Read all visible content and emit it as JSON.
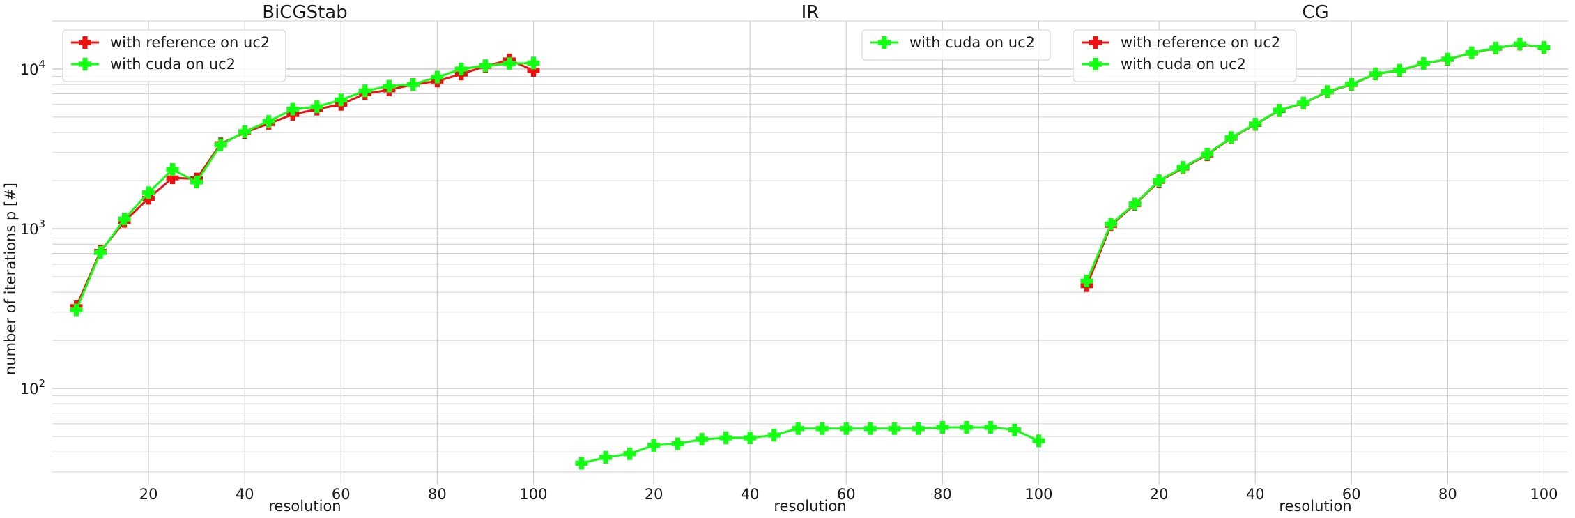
{
  "figure": {
    "ylabel": "number of iterations p [#]"
  },
  "colors": {
    "reference": "#ee1111",
    "cuda": "#11ff11",
    "grid": "#d0d0d0",
    "legend_border": "#d9d9d9"
  },
  "chart_data": [
    {
      "type": "line",
      "title": "BiCGStab",
      "xlabel": "resolution",
      "ylabel": "number of iterations p [#]",
      "xlim": [
        0,
        105
      ],
      "ylim": [
        25,
        20000
      ],
      "yscale": "log",
      "grid": true,
      "xticks": [
        20,
        40,
        60,
        80,
        100
      ],
      "xtick_labels": [
        "20",
        "40",
        "60",
        "80",
        "100"
      ],
      "yticks": [
        100,
        1000,
        10000
      ],
      "ytick_labels": [
        "10^2",
        "10^3",
        "10^4"
      ],
      "legend": "upper-left",
      "x": [
        5,
        10,
        15,
        20,
        25,
        30,
        35,
        40,
        45,
        50,
        55,
        60,
        65,
        70,
        75,
        80,
        85,
        90,
        95,
        100
      ],
      "series": [
        {
          "name": "with reference on uc2",
          "color_key": "reference",
          "values": [
            325,
            720,
            1110,
            1550,
            2080,
            2050,
            3400,
            4000,
            4550,
            5200,
            5600,
            6000,
            7000,
            7400,
            8000,
            8400,
            9300,
            10400,
            11400,
            9800
          ]
        },
        {
          "name": "with cuda on uc2",
          "color_key": "cuda",
          "values": [
            310,
            710,
            1150,
            1680,
            2350,
            1960,
            3350,
            4050,
            4700,
            5600,
            5800,
            6400,
            7300,
            7800,
            8000,
            8900,
            10000,
            10500,
            10800,
            10900
          ]
        }
      ]
    },
    {
      "type": "line",
      "title": "IR",
      "xlabel": "resolution",
      "ylabel": "",
      "xlim": [
        0,
        105
      ],
      "ylim": [
        25,
        20000
      ],
      "yscale": "log",
      "grid": true,
      "xticks": [
        20,
        40,
        60,
        80,
        100
      ],
      "xtick_labels": [
        "20",
        "40",
        "60",
        "80",
        "100"
      ],
      "legend": "upper-right",
      "x": [
        5,
        10,
        15,
        20,
        25,
        30,
        35,
        40,
        45,
        50,
        55,
        60,
        65,
        70,
        75,
        80,
        85,
        90,
        95,
        100
      ],
      "series": [
        {
          "name": "with cuda on uc2",
          "color_key": "cuda",
          "values": [
            34,
            37,
            39,
            44,
            45,
            48,
            49,
            49,
            51,
            56,
            56,
            56,
            56,
            56,
            56,
            57,
            57,
            57,
            55,
            47
          ]
        }
      ]
    },
    {
      "type": "line",
      "title": "CG",
      "xlabel": "resolution",
      "ylabel": "",
      "xlim": [
        0,
        105
      ],
      "ylim": [
        25,
        20000
      ],
      "yscale": "log",
      "grid": true,
      "xticks": [
        20,
        40,
        60,
        80,
        100
      ],
      "xtick_labels": [
        "20",
        "40",
        "60",
        "80",
        "100"
      ],
      "legend": "upper-left",
      "x": [
        5,
        10,
        15,
        20,
        25,
        30,
        35,
        40,
        45,
        50,
        55,
        60,
        65,
        70,
        75,
        80,
        85,
        90,
        95,
        100
      ],
      "series": [
        {
          "name": "with reference on uc2",
          "color_key": "reference",
          "values": [
            440,
            1050,
            1420,
            1980,
            2400,
            2900,
            3700,
            4500,
            5500,
            6100,
            7200,
            8000,
            9300,
            9800,
            10800,
            11500,
            12600,
            13500,
            14300,
            13600
          ]
        },
        {
          "name": "with cuda on uc2",
          "color_key": "cuda",
          "values": [
            470,
            1070,
            1430,
            2000,
            2420,
            2930,
            3720,
            4520,
            5520,
            6120,
            7230,
            8030,
            9330,
            9830,
            10830,
            11530,
            12630,
            13530,
            14330,
            13630
          ]
        }
      ]
    }
  ]
}
